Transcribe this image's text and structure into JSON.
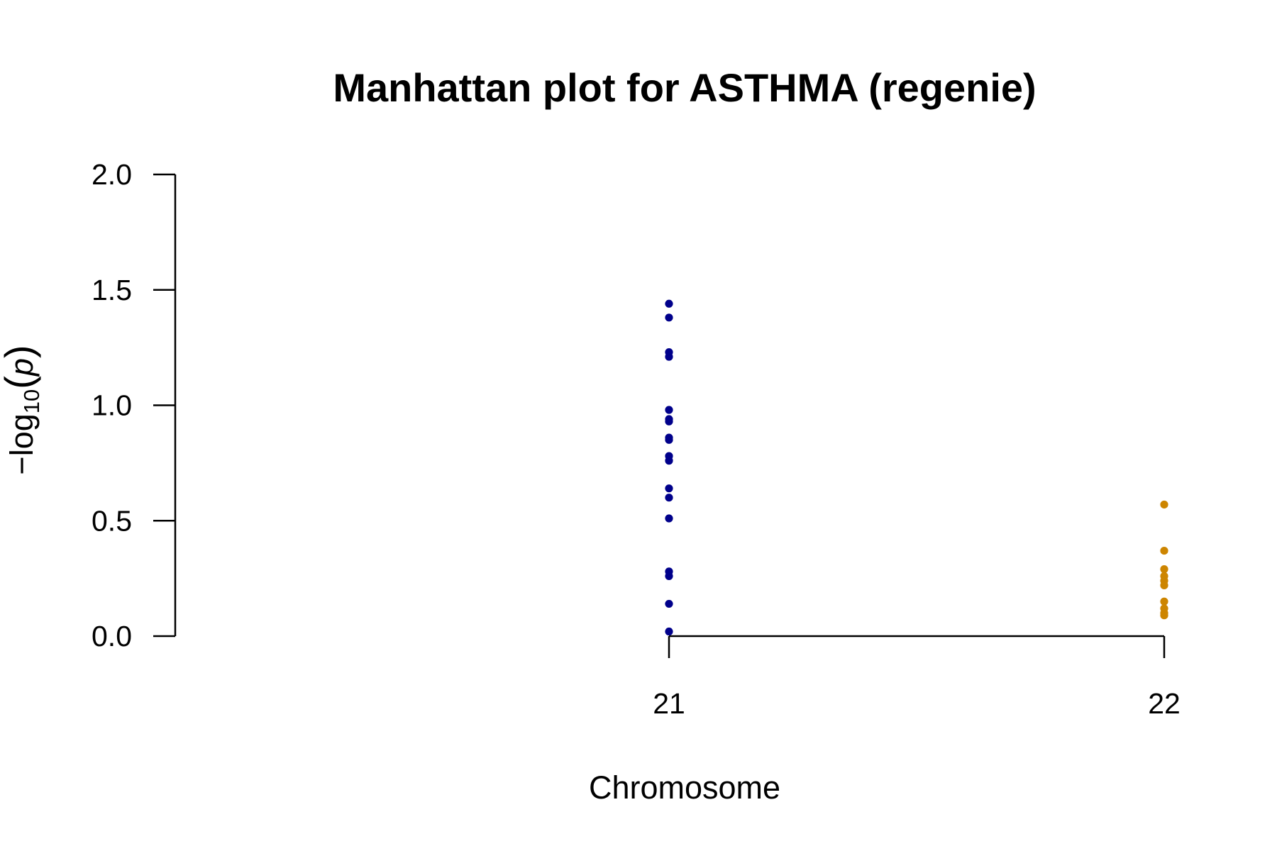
{
  "chart_data": {
    "type": "scatter",
    "title": "Manhattan plot for ASTHMA (regenie)",
    "xlabel": "Chromosome",
    "ylabel": {
      "prefix": "−log",
      "subscript": "10",
      "open": "(",
      "var": "p",
      "close": ")"
    },
    "ylim": [
      0,
      2
    ],
    "yticks": [
      {
        "value": 0.0,
        "label": "0.0"
      },
      {
        "value": 0.5,
        "label": "0.5"
      },
      {
        "value": 1.0,
        "label": "1.0"
      },
      {
        "value": 1.5,
        "label": "1.5"
      },
      {
        "value": 2.0,
        "label": "2.0"
      }
    ],
    "xticks": [
      {
        "value": 21,
        "label": "21"
      },
      {
        "value": 22,
        "label": "22"
      }
    ],
    "xlim": [
      20,
      22
    ],
    "grid": false,
    "series": [
      {
        "chromosome": 21,
        "color": "#00008B",
        "values": [
          1.44,
          1.38,
          1.23,
          1.21,
          0.98,
          0.94,
          0.93,
          0.86,
          0.85,
          0.78,
          0.76,
          0.64,
          0.6,
          0.51,
          0.28,
          0.26,
          0.14,
          0.02
        ]
      },
      {
        "chromosome": 22,
        "color": "#CD8500",
        "values": [
          0.57,
          0.37,
          0.29,
          0.26,
          0.24,
          0.22,
          0.15,
          0.12,
          0.1,
          0.09
        ]
      }
    ]
  }
}
